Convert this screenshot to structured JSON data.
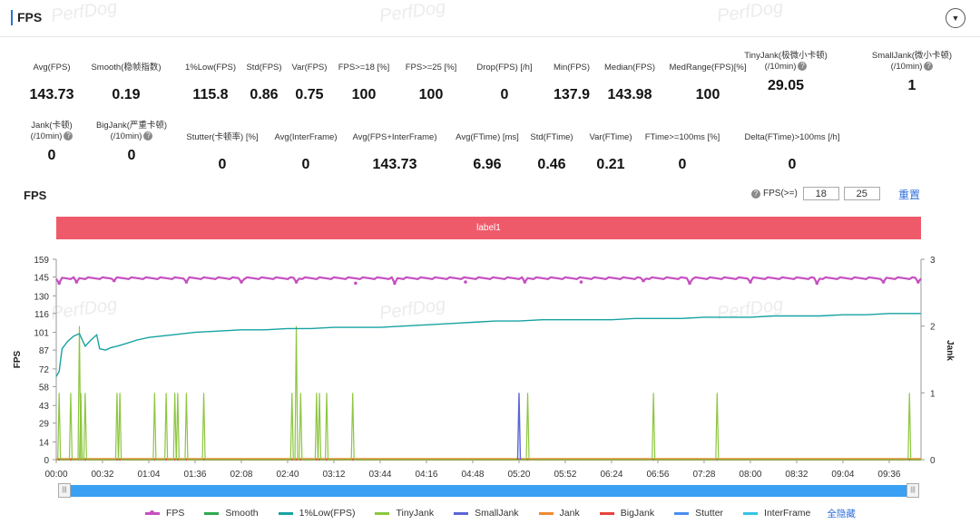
{
  "header": {
    "title": "FPS",
    "collapse_icon": "chevron-down-icon"
  },
  "watermark_text": "PerfDog",
  "metrics_row1": [
    {
      "label": "Avg(FPS)",
      "value": "143.73",
      "help": false
    },
    {
      "label": "Smooth(稳帧指数)",
      "value": "0.19",
      "help": true
    },
    {
      "label": "1%Low(FPS)",
      "value": "115.8",
      "help": false
    },
    {
      "label": "Std(FPS)",
      "value": "0.86",
      "help": false
    },
    {
      "label": "Var(FPS)",
      "value": "0.75",
      "help": false
    },
    {
      "label": "FPS>=18 [%]",
      "value": "100",
      "help": false
    },
    {
      "label": "FPS>=25 [%]",
      "value": "100",
      "help": false
    },
    {
      "label": "Drop(FPS) [/h]",
      "value": "0",
      "help": true
    },
    {
      "label": "Min(FPS)",
      "value": "137.9",
      "help": false
    },
    {
      "label": "Median(FPS)",
      "value": "143.98",
      "help": false
    },
    {
      "label": "MedRange(FPS)[%]",
      "value": "100",
      "help": false
    },
    {
      "label": "TinyJank(极微小卡顿)",
      "label2": "(/10min)",
      "value": "29.05",
      "help": true
    },
    {
      "label": "SmallJank(微小卡顿)",
      "label2": "(/10min)",
      "value": "1",
      "help": true
    }
  ],
  "metrics_row2": [
    {
      "label": "Jank(卡顿)",
      "label2": "(/10min)",
      "value": "0",
      "help": true
    },
    {
      "label": "BigJank(严重卡顿)",
      "label2": "(/10min)",
      "value": "0",
      "help": true
    },
    {
      "label": "Stutter(卡顿率) [%]",
      "value": "0",
      "help": false
    },
    {
      "label": "Avg(InterFrame)",
      "value": "0",
      "help": false
    },
    {
      "label": "Avg(FPS+InterFrame)",
      "value": "143.73",
      "help": false
    },
    {
      "label": "Avg(FTime) [ms]",
      "value": "6.96",
      "help": false
    },
    {
      "label": "Std(FTime)",
      "value": "0.46",
      "help": false
    },
    {
      "label": "Var(FTime)",
      "value": "0.21",
      "help": false
    },
    {
      "label": "FTime>=100ms [%]",
      "value": "0",
      "help": false
    },
    {
      "label": "Delta(FTime)>100ms [/h]",
      "value": "0",
      "help": true
    }
  ],
  "chart_section": {
    "title": "FPS",
    "threshold_label": "FPS(>=)",
    "threshold_1": "18",
    "threshold_2": "25",
    "reset_label": "重置",
    "band_label": "label1"
  },
  "chart_data": {
    "type": "line",
    "ylabel": "FPS",
    "y2label": "Jank",
    "ylim": [
      0,
      159
    ],
    "y_ticks": [
      "0",
      "14",
      "29",
      "43",
      "58",
      "72",
      "87",
      "101",
      "116",
      "130",
      "145",
      "159"
    ],
    "y2lim": [
      0,
      3
    ],
    "y2_ticks": [
      "0",
      "1",
      "2",
      "3"
    ],
    "x_ticks": [
      "00:00",
      "00:32",
      "01:04",
      "01:36",
      "02:08",
      "02:40",
      "03:12",
      "03:44",
      "04:16",
      "04:48",
      "05:20",
      "05:52",
      "06:24",
      "06:56",
      "07:28",
      "08:00",
      "08:32",
      "09:04",
      "09:36"
    ],
    "x_range_seconds": [
      0,
      598
    ],
    "colors": {
      "FPS": "#c64fc0",
      "Smooth": "#2fa84f",
      "1%Low(FPS)": "#17a2a2",
      "TinyJank": "#8dc63f",
      "SmallJank": "#5b64d6",
      "Jank": "#f08a32",
      "BigJank": "#e8413c",
      "Stutter": "#4b8ef0",
      "InterFrame": "#36c3e3"
    },
    "series": [
      {
        "name": "FPS",
        "axis": "left",
        "base": 144,
        "dips": [
          [
            2,
            140
          ],
          [
            14,
            141
          ],
          [
            40,
            142
          ],
          [
            90,
            141
          ],
          [
            128,
            141
          ],
          [
            166,
            141
          ],
          [
            207,
            140
          ],
          [
            234,
            140
          ],
          [
            283,
            141
          ],
          [
            324,
            141
          ],
          [
            363,
            141
          ],
          [
            406,
            142
          ],
          [
            438,
            140
          ],
          [
            480,
            141
          ],
          [
            526,
            140
          ],
          [
            572,
            141
          ],
          [
            596,
            141
          ]
        ]
      },
      {
        "name": "1%Low(FPS)",
        "axis": "left",
        "x": [
          0,
          2,
          4,
          8,
          12,
          16,
          20,
          24,
          28,
          30,
          34,
          38,
          42,
          48,
          56,
          64,
          72,
          80,
          96,
          112,
          128,
          144,
          160,
          176,
          192,
          208,
          224,
          240,
          256,
          272,
          288,
          304,
          320,
          336,
          352,
          368,
          384,
          400,
          416,
          432,
          448,
          464,
          480,
          496,
          512,
          528,
          544,
          560,
          576,
          598
        ],
        "y": [
          66,
          70,
          88,
          94,
          98,
          100,
          90,
          95,
          99,
          88,
          87,
          89,
          90,
          92,
          95,
          97,
          98,
          99,
          101,
          102,
          103,
          103,
          104,
          104,
          105,
          105,
          105,
          106,
          107,
          108,
          109,
          110,
          110,
          111,
          111,
          111,
          111,
          112,
          112,
          112,
          113,
          113,
          113,
          114,
          114,
          114,
          115,
          115,
          116,
          116
        ]
      },
      {
        "name": "TinyJank",
        "axis": "right",
        "x": [
          2,
          10,
          16,
          17,
          20,
          42,
          44,
          68,
          76,
          82,
          84,
          90,
          102,
          163,
          166,
          169,
          180,
          182,
          187,
          205,
          326,
          413,
          457,
          590
        ],
        "y": [
          1,
          1,
          2,
          1,
          1,
          1,
          1,
          1,
          1,
          1,
          1,
          1,
          1,
          1,
          2,
          1,
          1,
          1,
          1,
          1,
          1,
          1,
          1,
          1
        ]
      },
      {
        "name": "SmallJank",
        "axis": "right",
        "x": [
          320
        ],
        "y": [
          1
        ]
      },
      {
        "name": "Smooth",
        "axis": "left",
        "y_const": 0
      },
      {
        "name": "Jank",
        "axis": "right",
        "y_const": 0
      },
      {
        "name": "BigJank",
        "axis": "right",
        "y_const": 0
      },
      {
        "name": "Stutter",
        "axis": "left",
        "y_const": 0
      },
      {
        "name": "InterFrame",
        "axis": "left",
        "y_const": 0
      }
    ]
  },
  "legend": {
    "items": [
      "FPS",
      "Smooth",
      "1%Low(FPS)",
      "TinyJank",
      "SmallJank",
      "Jank",
      "BigJank",
      "Stutter",
      "InterFrame"
    ],
    "hide_all_label": "全隐藏"
  }
}
